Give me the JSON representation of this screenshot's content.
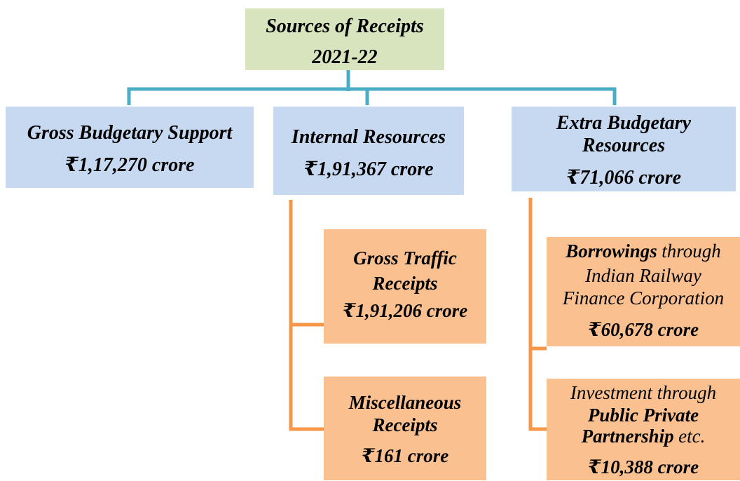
{
  "root": {
    "lines": [
      "Sources of Receipts",
      "2021-22"
    ]
  },
  "sources": [
    {
      "lines": [
        "Gross Budgetary Support"
      ],
      "amount": "₹1,17,270 crore"
    },
    {
      "lines": [
        "Internal Resources"
      ],
      "amount": "₹1,91,367 crore",
      "components": [
        {
          "lines": [
            "Gross Traffic",
            "Receipts"
          ],
          "amount": "₹1,91,206 crore"
        },
        {
          "lines": [
            "Miscellaneous",
            "Receipts"
          ],
          "amount": "₹161 crore"
        }
      ]
    },
    {
      "lines": [
        "Extra Budgetary",
        "Resources"
      ],
      "amount": "₹71,066 crore",
      "components": [
        {
          "lines": [
            [
              {
                "text": "Borrowings",
                "bold": true
              },
              {
                "text": "through",
                "bold": false
              }
            ],
            [
              {
                "text": "Indian Railway",
                "bold": false
              }
            ],
            [
              {
                "text": "Finance Corporation",
                "bold": false
              }
            ]
          ],
          "amount": "₹60,678 crore"
        },
        {
          "lines": [
            [
              {
                "text": "Investment through",
                "bold": false
              }
            ],
            [
              {
                "text": "Public Private",
                "bold": true
              }
            ],
            [
              {
                "text": "Partnership",
                "bold": true
              },
              {
                "text": "etc.",
                "bold": false
              }
            ]
          ],
          "amount": "₹10,388 crore"
        }
      ]
    }
  ]
}
